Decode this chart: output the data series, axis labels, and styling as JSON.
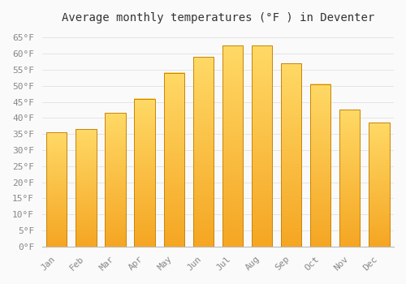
{
  "title": "Average monthly temperatures (°F ) in Deventer",
  "months": [
    "Jan",
    "Feb",
    "Mar",
    "Apr",
    "May",
    "Jun",
    "Jul",
    "Aug",
    "Sep",
    "Oct",
    "Nov",
    "Dec"
  ],
  "values": [
    35.5,
    36.5,
    41.5,
    46.0,
    54.0,
    59.0,
    62.5,
    62.5,
    57.0,
    50.5,
    42.5,
    38.5
  ],
  "bar_color_top": "#FFD966",
  "bar_color_bottom": "#F5A623",
  "bar_edge_color": "#C8850A",
  "background_color": "#FAFAFA",
  "grid_color": "#E0E0E0",
  "ylim": [
    0,
    68
  ],
  "ytick_step": 5,
  "title_fontsize": 10,
  "tick_fontsize": 8,
  "tick_font_color": "#888888",
  "title_font_color": "#333333",
  "bar_width": 0.7
}
